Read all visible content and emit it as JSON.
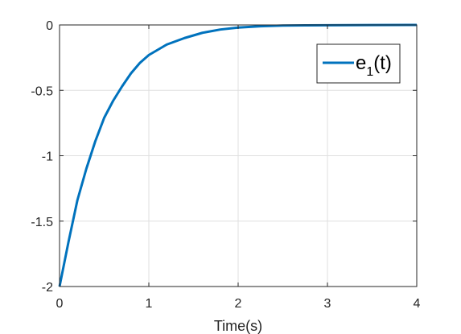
{
  "chart_data": {
    "type": "line",
    "title": "",
    "xlabel": "Time(s)",
    "ylabel": "",
    "xlim": [
      0,
      4
    ],
    "ylim": [
      -2,
      0
    ],
    "grid": true,
    "legend_position": "top-right",
    "x_ticks": [
      0,
      1,
      2,
      3,
      4
    ],
    "x_tick_labels": [
      "0",
      "1",
      "2",
      "3",
      "4"
    ],
    "y_ticks": [
      0,
      -0.5,
      -1,
      -1.5,
      -2
    ],
    "y_tick_labels": [
      "0",
      "-0.5",
      "-1",
      "-1.5",
      "-2"
    ],
    "series": [
      {
        "name": "e1(t)",
        "legend_main": "e",
        "legend_sub": "1",
        "legend_suffix": "(t)",
        "color": "#0072BD",
        "x": [
          0,
          0.1,
          0.2,
          0.3,
          0.4,
          0.5,
          0.6,
          0.7,
          0.8,
          0.9,
          1.0,
          1.2,
          1.4,
          1.6,
          1.8,
          2.0,
          2.25,
          2.5,
          2.75,
          3.0,
          3.5,
          4.0
        ],
        "y": [
          -2,
          -1.66,
          -1.34,
          -1.1,
          -0.89,
          -0.71,
          -0.58,
          -0.47,
          -0.37,
          -0.29,
          -0.23,
          -0.15,
          -0.1,
          -0.06,
          -0.035,
          -0.02,
          -0.01,
          -0.005,
          -0.003,
          -0.002,
          -0.001,
          0
        ]
      }
    ]
  }
}
